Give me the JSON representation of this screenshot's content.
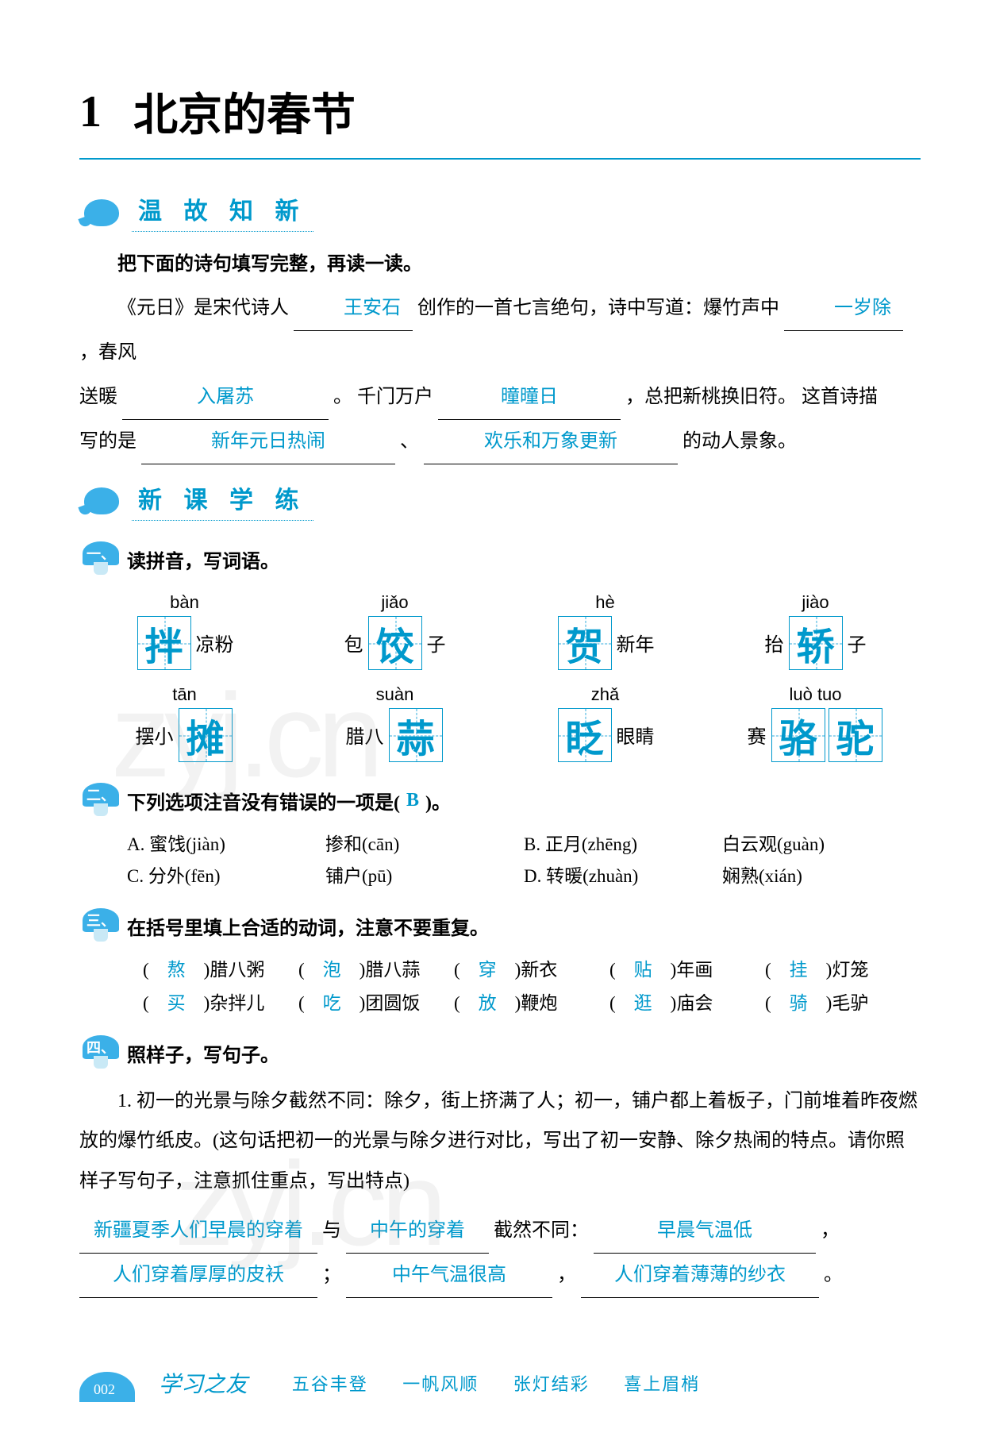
{
  "colors": {
    "accent": "#0099cc",
    "answer": "#0099cc",
    "text": "#000000",
    "bg": "#ffffff",
    "watermark": "rgba(150,150,150,0.12)"
  },
  "title": {
    "num": "1",
    "text": "北京的春节"
  },
  "sectionA": {
    "heading": "温 故 知 新",
    "instruction": "把下面的诗句填写完整，再读一读。",
    "para_pre1": "《元日》是宋代诗人",
    "blank1": "王安石",
    "para_mid1": "创作的一首七言绝句，诗中写道：爆竹声中",
    "blank2": "一岁除",
    "para_mid2": "，春风",
    "line2_pre": "送暖",
    "blank3": "入屠苏",
    "line2_mid": "。 千门万户",
    "blank4": "曈曈日",
    "line2_tail": "，总把新桃换旧符。 这首诗描",
    "line3_pre": "写的是",
    "blank5": "新年元日热闹",
    "sep": "、",
    "blank6": "欢乐和万象更新",
    "line3_tail": "的动人景象。"
  },
  "sectionB": {
    "heading": "新 课 学 练",
    "q1": {
      "label": "一、",
      "text": "读拼音，写词语。",
      "row1": [
        {
          "pinyin": "bàn",
          "prefix": "",
          "hanzi": [
            "拌"
          ],
          "suffix": "凉粉"
        },
        {
          "pinyin": "jiǎo",
          "prefix": "包",
          "hanzi": [
            "饺"
          ],
          "suffix": "子"
        },
        {
          "pinyin": "hè",
          "prefix": "",
          "hanzi": [
            "贺"
          ],
          "suffix": "新年"
        },
        {
          "pinyin": "jiào",
          "prefix": "抬",
          "hanzi": [
            "轿"
          ],
          "suffix": "子"
        }
      ],
      "row2": [
        {
          "pinyin": "tān",
          "prefix": "摆小",
          "hanzi": [
            "摊"
          ],
          "suffix": ""
        },
        {
          "pinyin": "suàn",
          "prefix": "腊八",
          "hanzi": [
            "蒜"
          ],
          "suffix": ""
        },
        {
          "pinyin": "zhǎ",
          "prefix": "",
          "hanzi": [
            "眨"
          ],
          "suffix": "眼睛"
        },
        {
          "pinyin": "luò tuo",
          "prefix": "赛",
          "hanzi": [
            "骆",
            "驼"
          ],
          "suffix": ""
        }
      ]
    },
    "q2": {
      "label": "二、",
      "text_pre": "下列选项注音没有错误的一项是(",
      "answer": "B",
      "text_post": ")。",
      "rows": [
        [
          {
            "l": "A. 蜜饯(jiàn)"
          },
          {
            "l": "掺和(cān)"
          },
          {
            "l": "B. 正月(zhēng)"
          },
          {
            "l": "白云观(guàn)"
          }
        ],
        [
          {
            "l": "C. 分外(fēn)"
          },
          {
            "l": "铺户(pū)"
          },
          {
            "l": "D. 转暖(zhuàn)"
          },
          {
            "l": "娴熟(xián)"
          }
        ]
      ]
    },
    "q3": {
      "label": "三、",
      "text": "在括号里填上合适的动词，注意不要重复。",
      "rows": [
        [
          {
            "a": "熬",
            "w": "腊八粥"
          },
          {
            "a": "泡",
            "w": "腊八蒜"
          },
          {
            "a": "穿",
            "w": "新衣"
          },
          {
            "a": "贴",
            "w": "年画"
          },
          {
            "a": "挂",
            "w": "灯笼"
          }
        ],
        [
          {
            "a": "买",
            "w": "杂拌儿"
          },
          {
            "a": "吃",
            "w": "团圆饭"
          },
          {
            "a": "放",
            "w": "鞭炮"
          },
          {
            "a": "逛",
            "w": "庙会"
          },
          {
            "a": "骑",
            "w": "毛驴"
          }
        ]
      ]
    },
    "q4": {
      "label": "四、",
      "text": "照样子，写句子。",
      "para": "1. 初一的光景与除夕截然不同：除夕，街上挤满了人；初一，铺户都上着板子，门前堆着昨夜燃放的爆竹纸皮。(这句话把初一的光景与除夕进行对比，写出了初一安静、除夕热闹的特点。请你照样子写句子，注意抓住重点，写出特点)",
      "ans_line1": {
        "b1": "新疆夏季人们早晨的穿着",
        "mid1": "与",
        "b2": "中午的穿着",
        "mid2": "截然不同：",
        "b3": "早晨气温低",
        "tail": "，"
      },
      "ans_line2": {
        "b1": "人们穿着厚厚的皮袄",
        "mid1": "；",
        "b2": "中午气温很高",
        "mid2": "，",
        "b3": "人们穿着薄薄的纱衣",
        "tail": "。"
      }
    }
  },
  "watermarks": [
    "zyj.cn",
    "zyj.cn"
  ],
  "footer": {
    "page": "002",
    "brand": "学习之友",
    "idioms": [
      "五谷丰登",
      "一帆风顺",
      "张灯结彩",
      "喜上眉梢"
    ]
  }
}
